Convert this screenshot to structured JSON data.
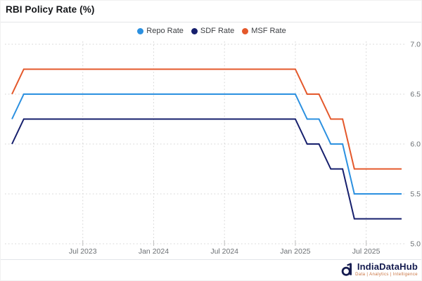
{
  "header": {
    "title": "RBI Policy Rate (%)"
  },
  "legend": {
    "items": [
      {
        "label": "Repo Rate",
        "color": "#2b90e0"
      },
      {
        "label": "SDF Rate",
        "color": "#161f6d"
      },
      {
        "label": "MSF Rate",
        "color": "#e4582b"
      }
    ]
  },
  "chart_data": {
    "type": "line",
    "title": "RBI Policy Rate (%)",
    "x": [
      "2023-01",
      "2023-02",
      "2023-03",
      "2023-04",
      "2023-05",
      "2023-06",
      "2023-07",
      "2023-08",
      "2023-09",
      "2023-10",
      "2023-11",
      "2023-12",
      "2024-01",
      "2024-02",
      "2024-03",
      "2024-04",
      "2024-05",
      "2024-06",
      "2024-07",
      "2024-08",
      "2024-09",
      "2024-10",
      "2024-11",
      "2024-12",
      "2025-01",
      "2025-02",
      "2025-03",
      "2025-04",
      "2025-05",
      "2025-06",
      "2025-07",
      "2025-08",
      "2025-09",
      "2025-10"
    ],
    "series": [
      {
        "name": "Repo Rate",
        "color": "#2b90e0",
        "values": [
          6.25,
          6.5,
          6.5,
          6.5,
          6.5,
          6.5,
          6.5,
          6.5,
          6.5,
          6.5,
          6.5,
          6.5,
          6.5,
          6.5,
          6.5,
          6.5,
          6.5,
          6.5,
          6.5,
          6.5,
          6.5,
          6.5,
          6.5,
          6.5,
          6.5,
          6.25,
          6.25,
          6.0,
          6.0,
          5.5,
          5.5,
          5.5,
          5.5,
          5.5
        ]
      },
      {
        "name": "SDF Rate",
        "color": "#161f6d",
        "values": [
          6.0,
          6.25,
          6.25,
          6.25,
          6.25,
          6.25,
          6.25,
          6.25,
          6.25,
          6.25,
          6.25,
          6.25,
          6.25,
          6.25,
          6.25,
          6.25,
          6.25,
          6.25,
          6.25,
          6.25,
          6.25,
          6.25,
          6.25,
          6.25,
          6.25,
          6.0,
          6.0,
          5.75,
          5.75,
          5.25,
          5.25,
          5.25,
          5.25,
          5.25
        ]
      },
      {
        "name": "MSF Rate",
        "color": "#e4582b",
        "values": [
          6.5,
          6.75,
          6.75,
          6.75,
          6.75,
          6.75,
          6.75,
          6.75,
          6.75,
          6.75,
          6.75,
          6.75,
          6.75,
          6.75,
          6.75,
          6.75,
          6.75,
          6.75,
          6.75,
          6.75,
          6.75,
          6.75,
          6.75,
          6.75,
          6.75,
          6.5,
          6.5,
          6.25,
          6.25,
          5.75,
          5.75,
          5.75,
          5.75,
          5.75
        ]
      }
    ],
    "x_tick_labels": [
      "Jul 2023",
      "Jan 2024",
      "Jul 2024",
      "Jan 2025",
      "Jul 2025"
    ],
    "x_tick_indices": [
      6,
      12,
      18,
      24,
      30
    ],
    "y_ticks": [
      5.0,
      5.5,
      6.0,
      6.5,
      7.0
    ],
    "y_tick_labels": [
      "5.0",
      "5.5",
      "6.0",
      "6.5",
      "7.0"
    ],
    "ylim": [
      5.0,
      7.0
    ],
    "y_axis_side": "right",
    "grid": "dotted-both-axes",
    "legend_position": "top-center",
    "colors": {
      "grid": "#d4d4d4",
      "tick": "#bfbfbf",
      "axis_text": "#6b6f73"
    }
  },
  "footer": {
    "brand": "IndiaDataHub",
    "tagline": "Data | Analytics | Intelligence"
  }
}
